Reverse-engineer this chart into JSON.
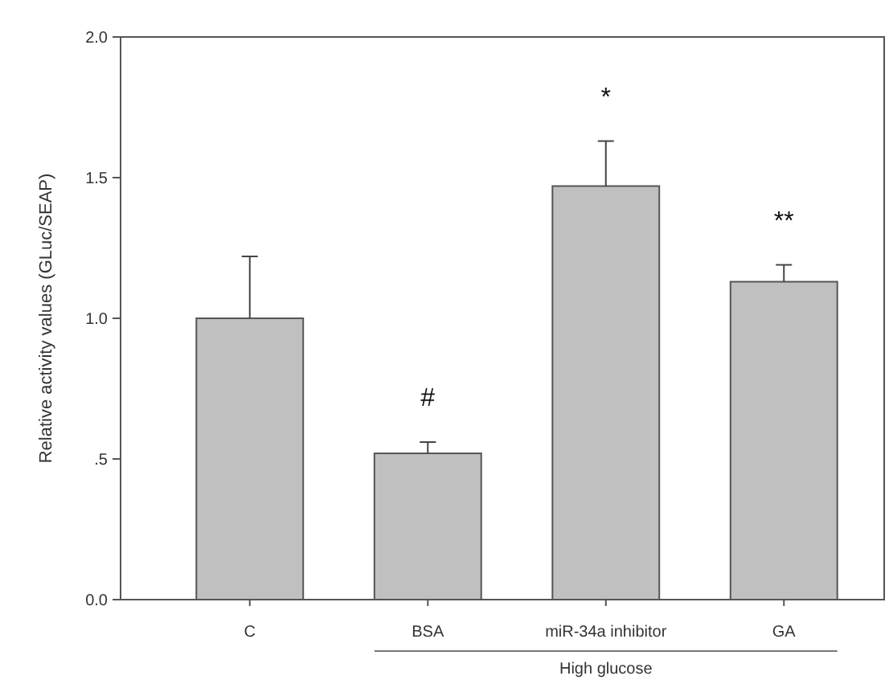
{
  "chart_data": {
    "type": "bar",
    "ylabel": "Relative activity values (GLuc/SEAP)",
    "categories": [
      "C",
      "BSA",
      "miR-34a inhibitor",
      "GA"
    ],
    "values": [
      1.0,
      0.52,
      1.47,
      1.13
    ],
    "errors": [
      0.22,
      0.04,
      0.16,
      0.06
    ],
    "color": "#c0c0c0",
    "ylim": [
      0,
      2
    ],
    "yticks": [
      {
        "value": 0,
        "label": "0.0"
      },
      {
        "value": 0.5,
        "label": ".5"
      },
      {
        "value": 1,
        "label": "1.0"
      },
      {
        "value": 1.5,
        "label": "1.5"
      },
      {
        "value": 2,
        "label": "2.0"
      }
    ],
    "annotations": [
      "#",
      "*",
      "**",
      "High glucose"
    ]
  }
}
